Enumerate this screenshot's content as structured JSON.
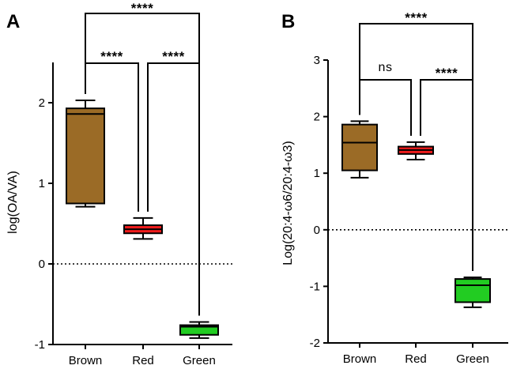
{
  "chart_data": [
    {
      "panel": "A",
      "type": "box",
      "categories": [
        "Brown",
        "Red",
        "Green"
      ],
      "ylabel": "log(OA/VA)",
      "xlabel": "",
      "ylim": [
        -1,
        2.5
      ],
      "yticks": [
        "-1",
        "0",
        "1",
        "2"
      ],
      "reference_line": 0,
      "series": [
        {
          "name": "Brown",
          "color": "#9b6b26",
          "min": 0.71,
          "q1": 0.75,
          "median": 1.86,
          "q3": 1.93,
          "max": 2.03
        },
        {
          "name": "Red",
          "color": "#ee1c1c",
          "min": 0.31,
          "q1": 0.38,
          "median": 0.43,
          "q3": 0.48,
          "max": 0.57
        },
        {
          "name": "Green",
          "color": "#22cc22",
          "min": -0.92,
          "q1": -0.88,
          "median": -0.78,
          "q3": -0.76,
          "max": -0.72
        }
      ],
      "comparisons": [
        {
          "from": "Brown",
          "to": "Red",
          "label": "****"
        },
        {
          "from": "Red",
          "to": "Green",
          "label": "****"
        },
        {
          "from": "Brown",
          "to": "Green",
          "label": "****"
        }
      ]
    },
    {
      "panel": "B",
      "type": "box",
      "categories": [
        "Brown",
        "Red",
        "Green"
      ],
      "ylabel": "Log(20:4-ω6/20:4-ω3)",
      "xlabel": "",
      "ylim": [
        -2,
        3
      ],
      "yticks": [
        "-2",
        "-1",
        "0",
        "1",
        "2",
        "3"
      ],
      "reference_line": 0,
      "series": [
        {
          "name": "Brown",
          "color": "#9b6b26",
          "min": 0.92,
          "q1": 1.05,
          "median": 1.54,
          "q3": 1.86,
          "max": 1.92
        },
        {
          "name": "Red",
          "color": "#ee1c1c",
          "min": 1.24,
          "q1": 1.34,
          "median": 1.41,
          "q3": 1.47,
          "max": 1.55
        },
        {
          "name": "Green",
          "color": "#22cc22",
          "min": -1.37,
          "q1": -1.28,
          "median": -0.98,
          "q3": -0.87,
          "max": -0.84
        }
      ],
      "comparisons": [
        {
          "from": "Brown",
          "to": "Red",
          "label": "ns"
        },
        {
          "from": "Red",
          "to": "Green",
          "label": "****"
        },
        {
          "from": "Brown",
          "to": "Green",
          "label": "****"
        }
      ]
    }
  ]
}
